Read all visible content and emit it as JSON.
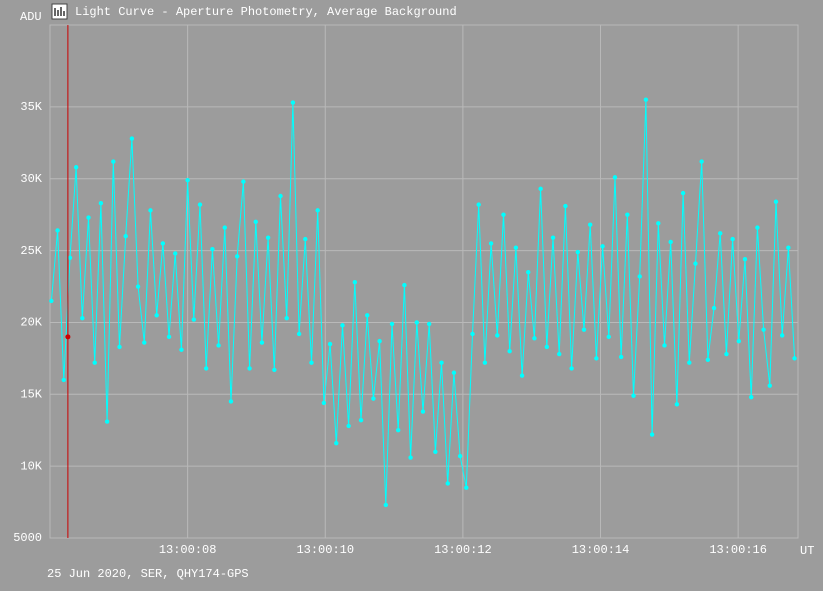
{
  "chart_data": {
    "type": "line",
    "title": "Light Curve - Aperture Photometry, Average Background",
    "y_label": "ADU",
    "x_label": "UT",
    "footer": "25 Jun 2020, SER, QHY174-GPS",
    "x": [
      6.02,
      6.11,
      6.2,
      6.29,
      6.38,
      6.47,
      6.56,
      6.65,
      6.74,
      6.83,
      6.92,
      7.01,
      7.1,
      7.19,
      7.28,
      7.37,
      7.46,
      7.55,
      7.64,
      7.73,
      7.82,
      7.91,
      8.0,
      8.09,
      8.18,
      8.27,
      8.36,
      8.45,
      8.54,
      8.63,
      8.72,
      8.81,
      8.9,
      8.99,
      9.08,
      9.17,
      9.26,
      9.35,
      9.44,
      9.53,
      9.62,
      9.71,
      9.8,
      9.89,
      9.98,
      10.07,
      10.16,
      10.25,
      10.34,
      10.43,
      10.52,
      10.61,
      10.7,
      10.79,
      10.88,
      10.97,
      11.06,
      11.15,
      11.24,
      11.33,
      11.42,
      11.51,
      11.6,
      11.69,
      11.78,
      11.87,
      11.96,
      12.05,
      12.14,
      12.23,
      12.32,
      12.41,
      12.5,
      12.59,
      12.68,
      12.77,
      12.86,
      12.95,
      13.04,
      13.13,
      13.22,
      13.31,
      13.4,
      13.49,
      13.58,
      13.67,
      13.76,
      13.85,
      13.94,
      14.03,
      14.12,
      14.21,
      14.3,
      14.39,
      14.48,
      14.57,
      14.66,
      14.75,
      14.84,
      14.93,
      15.02,
      15.11,
      15.2,
      15.29,
      15.38,
      15.47,
      15.56,
      15.65,
      15.74,
      15.83,
      15.92,
      16.01,
      16.1,
      16.19,
      16.28,
      16.37,
      16.46,
      16.55,
      16.64,
      16.73,
      16.82
    ],
    "series": [
      {
        "color": "#00ffff",
        "values": [
          21500,
          26400,
          16000,
          24500,
          30800,
          20300,
          27300,
          17200,
          28300,
          13100,
          31200,
          18300,
          26000,
          32800,
          22500,
          18600,
          27800,
          20500,
          25500,
          19000,
          24800,
          18100,
          29900,
          20200,
          28200,
          16800,
          25100,
          18400,
          26600,
          14500,
          24600,
          29800,
          16800,
          27000,
          18600,
          25900,
          16700,
          28800,
          20300,
          35300,
          19200,
          25800,
          17200,
          27800,
          14400,
          18500,
          11600,
          19800,
          12800,
          22800,
          13200,
          20500,
          14700,
          18700,
          7300,
          19900,
          12500,
          22600,
          10600,
          20000,
          13800,
          19900,
          11000,
          17200,
          8800,
          16500,
          10700,
          8500,
          19200,
          28200,
          17200,
          25500,
          19100,
          27500,
          18000,
          25200,
          16300,
          23500,
          18900,
          29300,
          18300,
          25900,
          17800,
          28100,
          16800,
          24900,
          19500,
          26800,
          17500,
          25300,
          19000,
          30100,
          17600,
          27500,
          14900,
          23200,
          35500,
          12200,
          26900,
          18400,
          25600,
          14300,
          29000,
          17200,
          24100,
          31200,
          17400,
          21000,
          26200,
          17800,
          25800,
          18700,
          24400,
          14800,
          26600,
          19500,
          15600,
          28400,
          19100,
          25200,
          17500
        ]
      }
    ],
    "cursor": {
      "x": 6.26,
      "value": 19000,
      "color": "#cc0000"
    },
    "xlim": [
      6.0,
      16.87
    ],
    "xticks": [
      {
        "value": 8,
        "label": "13:00:08"
      },
      {
        "value": 10,
        "label": "13:00:10"
      },
      {
        "value": 12,
        "label": "13:00:12"
      },
      {
        "value": 14,
        "label": "13:00:14"
      },
      {
        "value": 16,
        "label": "13:00:16"
      }
    ],
    "ylim": [
      5000,
      40700
    ],
    "yticks": [
      5000,
      {
        "value": 10000,
        "label": "10K"
      },
      {
        "value": 15000,
        "label": "15K"
      },
      {
        "value": 20000,
        "label": "20K"
      },
      {
        "value": 25000,
        "label": "25K"
      },
      {
        "value": 30000,
        "label": "30K"
      },
      {
        "value": 35000,
        "label": "35K"
      }
    ],
    "grid": true
  }
}
